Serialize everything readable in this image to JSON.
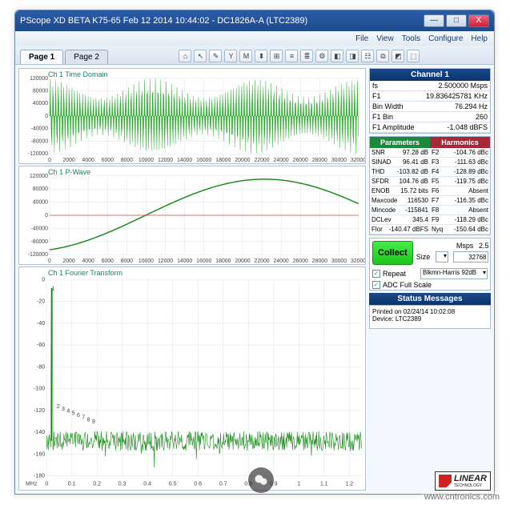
{
  "window": {
    "title": "PScope XD BETA K75-65 Feb 12 2014 10:44:02 - DC1826A-A (LTC2389)",
    "btn_min": "—",
    "btn_max": "□",
    "btn_close": "X"
  },
  "menu": {
    "file": "File",
    "view": "View",
    "tools": "Tools",
    "configure": "Configure",
    "help": "Help"
  },
  "tabs": {
    "page1": "Page 1",
    "page2": "Page 2"
  },
  "toolbar_icons": [
    "⌂",
    "↖",
    "✎",
    "Y",
    "M",
    "⬍",
    "⊞",
    "≡",
    "≣",
    "⚙",
    "◧",
    "◨",
    "☷",
    "⧉",
    "◩",
    "⬚"
  ],
  "charts": {
    "time": {
      "title": "Ch 1 Time Domain",
      "ylim": [
        -120000,
        120000
      ],
      "yticks": [
        -120000,
        -80000,
        -40000,
        0,
        40000,
        80000,
        120000
      ],
      "xlim": [
        0,
        32000
      ],
      "xticks": [
        0,
        2000,
        4000,
        6000,
        8000,
        10000,
        12000,
        14000,
        16000,
        18000,
        20000,
        22000,
        24000,
        26000,
        28000,
        30000,
        32000
      ],
      "fill_color": "#2aab2a",
      "bg": "#ffffff",
      "grid": "#dce4ec"
    },
    "pwave": {
      "title": "Ch 1 P-Wave",
      "ylim": [
        -120000,
        120000
      ],
      "yticks": [
        -120000,
        -80000,
        -40000,
        0,
        40000,
        80000,
        120000
      ],
      "xlim": [
        0,
        32000
      ],
      "xticks": [
        0,
        2000,
        4000,
        6000,
        8000,
        10000,
        12000,
        14000,
        16000,
        18000,
        20000,
        22000,
        24000,
        26000,
        28000,
        30000,
        32000
      ],
      "line_color": "#1a8a1a",
      "line_width": 1.5,
      "bg": "#ffffff",
      "grid": "#dce4ec"
    },
    "fft": {
      "title": "Ch 1 Fourier Transform",
      "ylim": [
        -180,
        0
      ],
      "yticks": [
        0,
        -20,
        -40,
        -60,
        -80,
        -100,
        -120,
        -140,
        -160,
        -180
      ],
      "xlim": [
        0,
        1.25
      ],
      "xticks": [
        0.0,
        0.1,
        0.2,
        0.3,
        0.4,
        0.5,
        0.6,
        0.7,
        0.8,
        0.9,
        1.0,
        1.1,
        1.2
      ],
      "xunit": "MHz",
      "line_color": "#1a8a1a",
      "noise_floor": -148,
      "peak_db": -8,
      "peak_x": 0.02,
      "harmonic_labels": [
        "1",
        "2",
        "3",
        "4",
        "5",
        "6",
        "7",
        "8",
        "9"
      ],
      "harmonic_color": "#1a4adf",
      "bg": "#ffffff",
      "grid": "#dce4ec"
    }
  },
  "channel_panel": {
    "title": "Channel 1",
    "rows": [
      {
        "k": "fs",
        "v": "2.500000 Msps"
      },
      {
        "k": "F1",
        "v": "19.836425781 KHz"
      },
      {
        "k": "Bin Width",
        "v": "76.294 Hz"
      },
      {
        "k": "F1 Bin",
        "v": "260"
      },
      {
        "k": "F1 Amplitude",
        "v": "-1.048 dBFS"
      }
    ]
  },
  "param_harm": {
    "params_label": "Parameters",
    "harm_label": "Harmonics",
    "params": [
      {
        "k": "SNR",
        "v": "97.28 dB"
      },
      {
        "k": "SINAD",
        "v": "96.41 dB"
      },
      {
        "k": "THD",
        "v": "-103.82 dB"
      },
      {
        "k": "SFDR",
        "v": "104.76 dB"
      },
      {
        "k": "ENOB",
        "v": "15.72 bits"
      },
      {
        "k": "Maxcode",
        "v": "116530"
      },
      {
        "k": "Mincode",
        "v": "-115841"
      },
      {
        "k": "DCLev",
        "v": "345.4"
      },
      {
        "k": "Flor",
        "v": "-140.47 dBFS"
      }
    ],
    "harm": [
      {
        "k": "F2",
        "v": "-104.76 dBc"
      },
      {
        "k": "F3",
        "v": "-111.63 dBc"
      },
      {
        "k": "F4",
        "v": "-128.89 dBc"
      },
      {
        "k": "F5",
        "v": "-119.75 dBc"
      },
      {
        "k": "F6",
        "v": "Absent"
      },
      {
        "k": "F7",
        "v": "-116.35 dBc"
      },
      {
        "k": "F8",
        "v": "Absent"
      },
      {
        "k": "F9",
        "v": "-118.29 dBc"
      },
      {
        "k": "Nyq",
        "v": "-150.64 dBc"
      }
    ]
  },
  "collect": {
    "button": "Collect",
    "msps_label": "Msps",
    "msps_value": "2.5",
    "size_label": "Size",
    "size_value": "32768",
    "repeat_label": "Repeat",
    "window_sel": "Blkmn-Harris 92dB",
    "adc_label": "ADC Full Scale"
  },
  "status": {
    "title": "Status Messages",
    "line1": "Printed on 02/24/14 10:02:08",
    "line2": "Device: LTC2389"
  },
  "logo": {
    "text": "LINEAR",
    "sub": "TECHNOLOGY"
  },
  "watermark": "www.cntronics.com"
}
